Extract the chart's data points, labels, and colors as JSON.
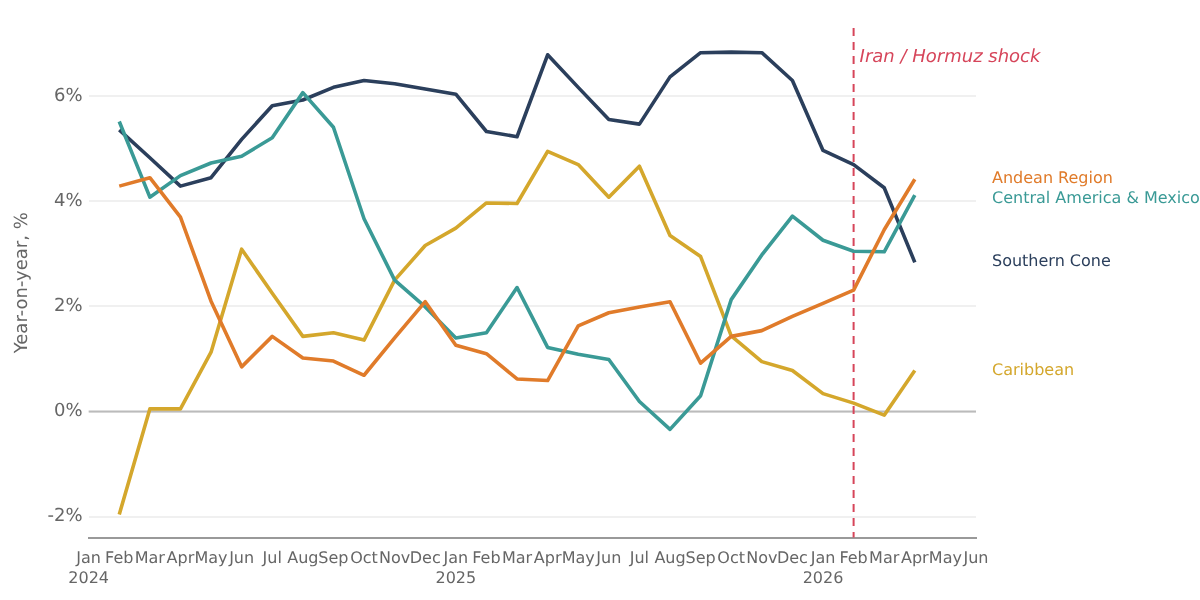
{
  "chart_data": {
    "type": "line",
    "ylabel": "Year-on-year, %",
    "legend": "right",
    "grid": "y",
    "marker": "none",
    "line_style": "solid",
    "x": [
      "2024-02",
      "2024-03",
      "2024-04",
      "2024-05",
      "2024-06",
      "2024-07",
      "2024-08",
      "2024-09",
      "2024-10",
      "2024-11",
      "2024-12",
      "2025-01",
      "2025-02",
      "2025-03",
      "2025-04",
      "2025-05",
      "2025-06",
      "2025-07",
      "2025-08",
      "2025-09",
      "2025-10",
      "2025-11",
      "2025-12",
      "2026-01",
      "2026-02",
      "2026-03",
      "2026-04"
    ],
    "xlim": [
      "2024-01",
      "2026-06"
    ],
    "xticks": [
      {
        "value": "2024-01",
        "label": "Jan 2024"
      },
      {
        "value": "2024-02",
        "label": "Feb"
      },
      {
        "value": "2024-03",
        "label": "Mar"
      },
      {
        "value": "2024-04",
        "label": "Apr"
      },
      {
        "value": "2024-05",
        "label": "May"
      },
      {
        "value": "2024-06",
        "label": "Jun"
      },
      {
        "value": "2024-07",
        "label": "Jul"
      },
      {
        "value": "2024-08",
        "label": "Aug"
      },
      {
        "value": "2024-09",
        "label": "Sep"
      },
      {
        "value": "2024-10",
        "label": "Oct"
      },
      {
        "value": "2024-11",
        "label": "Nov"
      },
      {
        "value": "2024-12",
        "label": "Dec"
      },
      {
        "value": "2025-01",
        "label": "Jan 2025"
      },
      {
        "value": "2025-02",
        "label": "Feb"
      },
      {
        "value": "2025-03",
        "label": "Mar"
      },
      {
        "value": "2025-04",
        "label": "Apr"
      },
      {
        "value": "2025-05",
        "label": "May"
      },
      {
        "value": "2025-06",
        "label": "Jun"
      },
      {
        "value": "2025-07",
        "label": "Jul"
      },
      {
        "value": "2025-08",
        "label": "Aug"
      },
      {
        "value": "2025-09",
        "label": "Sep"
      },
      {
        "value": "2025-10",
        "label": "Oct"
      },
      {
        "value": "2025-11",
        "label": "Nov"
      },
      {
        "value": "2025-12",
        "label": "Dec"
      },
      {
        "value": "2026-01",
        "label": "Jan 2026"
      },
      {
        "value": "2026-02",
        "label": "Feb"
      },
      {
        "value": "2026-03",
        "label": "Mar"
      },
      {
        "value": "2026-04",
        "label": "Apr"
      },
      {
        "value": "2026-05",
        "label": "May"
      },
      {
        "value": "2026-06",
        "label": "Jun"
      }
    ],
    "ylim": [
      -2.4,
      7.3
    ],
    "yticks": [
      {
        "value": -2,
        "label": "-2%"
      },
      {
        "value": 0,
        "label": "0%"
      },
      {
        "value": 2,
        "label": "2%"
      },
      {
        "value": 4,
        "label": "4%"
      },
      {
        "value": 6,
        "label": "6%"
      }
    ],
    "series": [
      {
        "name": "Andean Region",
        "color": "#e07b2a",
        "values": [
          4.29,
          4.45,
          3.7,
          2.1,
          0.85,
          1.43,
          1.02,
          0.96,
          0.69,
          1.4,
          2.09,
          1.26,
          1.1,
          0.62,
          0.59,
          1.63,
          1.88,
          1.99,
          2.09,
          0.92,
          1.43,
          1.54,
          1.81,
          2.06,
          2.31,
          3.46,
          4.42
        ]
      },
      {
        "name": "Central America & Mexico",
        "color": "#3a9a96",
        "values": [
          5.52,
          4.08,
          4.49,
          4.73,
          4.86,
          5.21,
          6.07,
          5.41,
          3.67,
          2.5,
          1.99,
          1.4,
          1.5,
          2.36,
          1.22,
          1.09,
          0.99,
          0.19,
          -0.34,
          0.3,
          2.13,
          2.98,
          3.72,
          3.26,
          3.05,
          3.04,
          4.12
        ]
      },
      {
        "name": "Southern Cone",
        "color": "#2b3f5c",
        "values": [
          5.36,
          4.83,
          4.29,
          4.45,
          5.18,
          5.82,
          5.93,
          6.17,
          6.3,
          6.24,
          6.14,
          6.04,
          5.33,
          5.23,
          6.79,
          6.17,
          5.56,
          5.47,
          6.37,
          6.83,
          6.84,
          6.83,
          6.3,
          4.97,
          4.7,
          4.26,
          2.84
        ]
      },
      {
        "name": "Caribbean",
        "color": "#d4a72c",
        "values": [
          -1.96,
          0.05,
          0.05,
          1.13,
          3.09,
          2.25,
          1.43,
          1.5,
          1.36,
          2.5,
          3.16,
          3.49,
          3.97,
          3.96,
          4.95,
          4.7,
          4.08,
          4.67,
          3.35,
          2.95,
          1.44,
          0.95,
          0.78,
          0.34,
          0.16,
          -0.07,
          0.78
        ]
      }
    ],
    "ref_lines": [
      {
        "axis": "y",
        "value": 0,
        "color": "#bbbbbb",
        "line_style": "solid"
      },
      {
        "axis": "x",
        "value": "2026-02",
        "label": "Iran / Hormuz shock",
        "color": "#d6455a",
        "line_style": "dashed"
      }
    ]
  }
}
